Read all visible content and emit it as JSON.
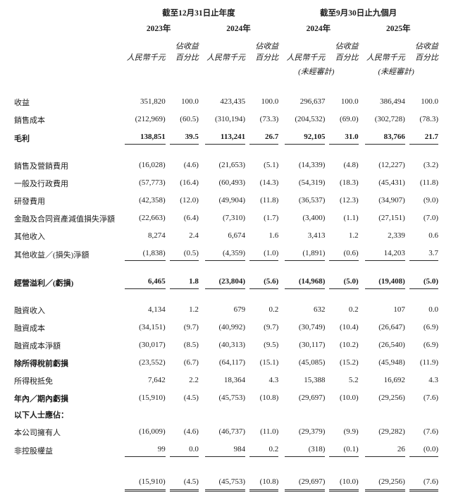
{
  "colors": {
    "background": "#ffffff",
    "text": "#1c1c1c",
    "rule": "#2a2a2a"
  },
  "table": {
    "col_groups": [
      {
        "title": "截至12月31日止年度",
        "years": [
          {
            "label": "2023年"
          },
          {
            "label": "2024年"
          }
        ]
      },
      {
        "title": "截至9月30日止九個月",
        "years": [
          {
            "label": "2024年"
          },
          {
            "label": "2025年"
          }
        ]
      }
    ],
    "subheaders": {
      "pct_top": "佔收益",
      "amount": "人民幣千元",
      "pct": "百分比",
      "unaudited": "(未經審計)"
    },
    "rows": [
      {
        "label": "收益",
        "values": [
          "351,820",
          "100.0",
          "423,435",
          "100.0",
          "296,637",
          "100.0",
          "386,494",
          "100.0"
        ]
      },
      {
        "label": "銷售成本",
        "values": [
          "(212,969)",
          "(60.5)",
          "(310,194)",
          "(73.3)",
          "(204,532)",
          "(69.0)",
          "(302,728)",
          "(78.3)"
        ]
      },
      {
        "label": "毛利",
        "bold": "all",
        "rule": "single",
        "values": [
          "138,851",
          "39.5",
          "113,241",
          "26.7",
          "92,105",
          "31.0",
          "83,766",
          "21.7"
        ]
      },
      {
        "type": "spacer"
      },
      {
        "label": "銷售及營銷費用",
        "values": [
          "(16,028)",
          "(4.6)",
          "(21,653)",
          "(5.1)",
          "(14,339)",
          "(4.8)",
          "(12,227)",
          "(3.2)"
        ]
      },
      {
        "label": "一般及行政費用",
        "values": [
          "(57,773)",
          "(16.4)",
          "(60,493)",
          "(14.3)",
          "(54,319)",
          "(18.3)",
          "(45,431)",
          "(11.8)"
        ]
      },
      {
        "label": "研發費用",
        "values": [
          "(42,358)",
          "(12.0)",
          "(49,904)",
          "(11.8)",
          "(36,537)",
          "(12.3)",
          "(34,907)",
          "(9.0)"
        ]
      },
      {
        "label": "金融及合同資產減值損失淨額",
        "values": [
          "(22,663)",
          "(6.4)",
          "(7,310)",
          "(1.7)",
          "(3,400)",
          "(1.1)",
          "(27,151)",
          "(7.0)"
        ]
      },
      {
        "label": "其他收入",
        "values": [
          "8,274",
          "2.4",
          "6,674",
          "1.6",
          "3,413",
          "1.2",
          "2,339",
          "0.6"
        ]
      },
      {
        "label": "其他收益／(損失)淨額",
        "rule": "single",
        "values": [
          "(1,838)",
          "(0.5)",
          "(4,359)",
          "(1.0)",
          "(1,891)",
          "(0.6)",
          "14,203",
          "3.7"
        ]
      },
      {
        "type": "spacer"
      },
      {
        "label": "經營溢利／(虧損)",
        "bold": "all",
        "rule": "single",
        "values": [
          "6,465",
          "1.8",
          "(23,804)",
          "(5.6)",
          "(14,968)",
          "(5.0)",
          "(19,408)",
          "(5.0)"
        ]
      },
      {
        "type": "spacer"
      },
      {
        "label": "融資收入",
        "values": [
          "4,134",
          "1.2",
          "679",
          "0.2",
          "632",
          "0.2",
          "107",
          "0.0"
        ]
      },
      {
        "label": "融資成本",
        "values": [
          "(34,151)",
          "(9.7)",
          "(40,992)",
          "(9.7)",
          "(30,749)",
          "(10.4)",
          "(26,647)",
          "(6.9)"
        ]
      },
      {
        "label": "融資成本淨額",
        "values": [
          "(30,017)",
          "(8.5)",
          "(40,313)",
          "(9.5)",
          "(30,117)",
          "(10.2)",
          "(26,540)",
          "(6.9)"
        ]
      },
      {
        "label": "除所得稅前虧損",
        "bold": "label",
        "values": [
          "(23,552)",
          "(6.7)",
          "(64,117)",
          "(15.1)",
          "(45,085)",
          "(15.2)",
          "(45,948)",
          "(11.9)"
        ]
      },
      {
        "label": "所得稅抵免",
        "values": [
          "7,642",
          "2.2",
          "18,364",
          "4.3",
          "15,388",
          "5.2",
          "16,692",
          "4.3"
        ]
      },
      {
        "label": "年內／期內虧損",
        "bold": "label",
        "values": [
          "(15,910)",
          "(4.5)",
          "(45,753)",
          "(10.8)",
          "(29,697)",
          "(10.0)",
          "(29,256)",
          "(7.6)"
        ]
      },
      {
        "label": "以下人士應佔：",
        "bold": "label"
      },
      {
        "label": "本公司擁有人",
        "values": [
          "(16,009)",
          "(4.6)",
          "(46,737)",
          "(11.0)",
          "(29,379)",
          "(9.9)",
          "(29,282)",
          "(7.6)"
        ]
      },
      {
        "label": "非控股權益",
        "rule": "single",
        "values": [
          "99",
          "0.0",
          "984",
          "0.2",
          "(318)",
          "(0.1)",
          "26",
          "(0.0)"
        ]
      },
      {
        "type": "spacer",
        "tall": true
      },
      {
        "label": "",
        "rule": "double",
        "values": [
          "(15,910)",
          "(4.5)",
          "(45,753)",
          "(10.8)",
          "(29,697)",
          "(10.0)",
          "(29,256)",
          "(7.6)"
        ]
      }
    ]
  }
}
